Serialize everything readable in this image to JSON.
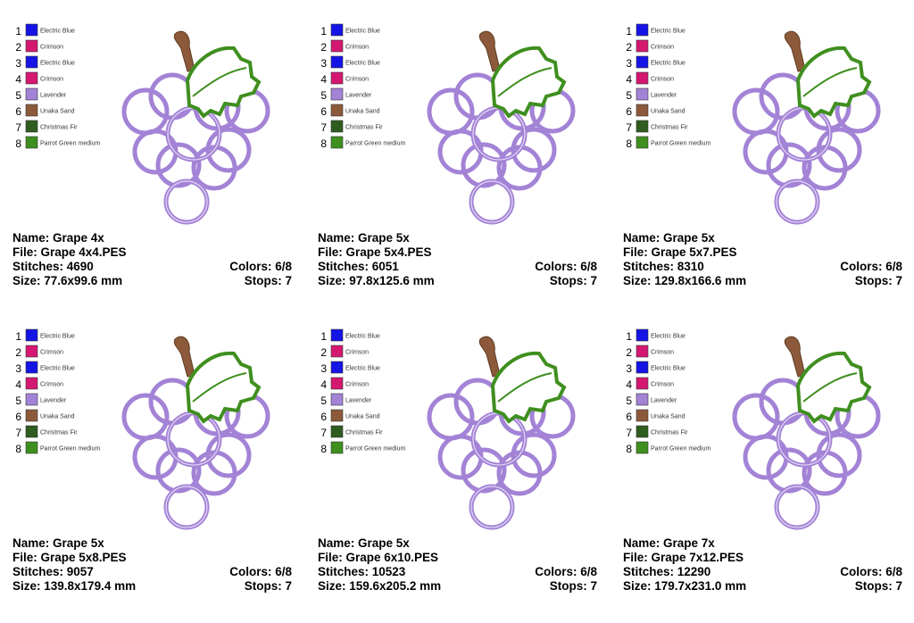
{
  "palette": [
    {
      "number": "1",
      "name": "Electric Blue",
      "color": "#1414e6"
    },
    {
      "number": "2",
      "name": "Crimson",
      "color": "#d41872"
    },
    {
      "number": "3",
      "name": "Electric Blue",
      "color": "#1414e6"
    },
    {
      "number": "4",
      "name": "Crimson",
      "color": "#d41872"
    },
    {
      "number": "5",
      "name": "Lavender",
      "color": "#a383d6"
    },
    {
      "number": "6",
      "name": "Unaka Sand",
      "color": "#8c5a3a"
    },
    {
      "number": "7",
      "name": "Christmas Fir",
      "color": "#2f5c1f"
    },
    {
      "number": "8",
      "name": "Parrot Green medium",
      "color": "#3f8f1f"
    }
  ],
  "panels": [
    {
      "name": "Name: Grape 4x",
      "file": "File: Grape 4x4.PES",
      "stitches": "Stitches: 4690",
      "colors": "Colors: 6/8",
      "size": "Size: 77.6x99.6 mm",
      "stops": "Stops: 7"
    },
    {
      "name": "Name: Grape 5x",
      "file": "File: Grape 5x4.PES",
      "stitches": "Stitches: 6051",
      "colors": "Colors: 6/8",
      "size": "Size: 97.8x125.6 mm",
      "stops": "Stops: 7"
    },
    {
      "name": "Name: Grape 5x",
      "file": "File: Grape 5x7.PES",
      "stitches": "Stitches: 8310",
      "colors": "Colors: 6/8",
      "size": "Size: 129.8x166.6 mm",
      "stops": "Stops: 7"
    },
    {
      "name": "Name: Grape 5x",
      "file": "File: Grape 5x8.PES",
      "stitches": "Stitches: 9057",
      "colors": "Colors: 6/8",
      "size": "Size: 139.8x179.4 mm",
      "stops": "Stops: 7"
    },
    {
      "name": "Name: Grape 5x",
      "file": "File: Grape 6x10.PES",
      "stitches": "Stitches: 10523",
      "colors": "Colors: 6/8",
      "size": "Size: 159.6x205.2 mm",
      "stops": "Stops: 7"
    },
    {
      "name": "Name: Grape 7x",
      "file": "File: Grape 7x12.PES",
      "stitches": "Stitches: 12290",
      "colors": "Colors: 6/8",
      "size": "Size: 179.7x231.0 mm",
      "stops": "Stops: 7"
    }
  ]
}
